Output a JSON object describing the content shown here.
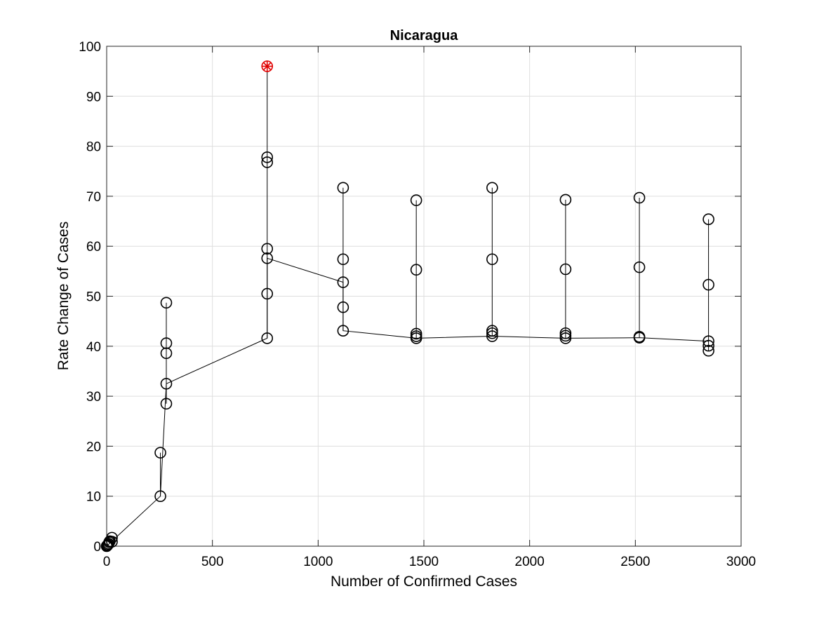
{
  "chart_data": {
    "type": "scatter",
    "title": "Nicaragua",
    "xlabel": "Number of Confirmed Cases",
    "ylabel": "Rate Change of Cases",
    "xlim": [
      0,
      3000
    ],
    "ylim": [
      0,
      100
    ],
    "xticks": [
      0,
      500,
      1000,
      1500,
      2000,
      2500,
      3000
    ],
    "yticks": [
      0,
      10,
      20,
      30,
      40,
      50,
      60,
      70,
      80,
      90,
      100
    ],
    "grid": true,
    "marker_color": "#000000",
    "highlight_color": "#e00000",
    "points": [
      [
        0,
        0
      ],
      [
        2,
        0.1
      ],
      [
        4,
        0.2
      ],
      [
        6,
        0.3
      ],
      [
        9,
        0.5
      ],
      [
        12,
        0.8
      ],
      [
        15,
        1.0
      ],
      [
        25,
        0.9
      ],
      [
        25,
        1.7
      ],
      [
        254,
        10
      ],
      [
        254,
        18.7
      ],
      [
        282,
        28.5
      ],
      [
        282,
        32.5
      ],
      [
        282,
        38.6
      ],
      [
        282,
        40.6
      ],
      [
        282,
        48.7
      ],
      [
        759,
        41.6
      ],
      [
        759,
        50.5
      ],
      [
        759,
        57.6
      ],
      [
        759,
        59.5
      ],
      [
        759,
        76.8
      ],
      [
        759,
        77.8
      ],
      [
        1118,
        43.1
      ],
      [
        1118,
        47.8
      ],
      [
        1118,
        52.8
      ],
      [
        1118,
        57.4
      ],
      [
        1118,
        71.7
      ],
      [
        1464,
        41.6
      ],
      [
        1464,
        42.0
      ],
      [
        1464,
        42.5
      ],
      [
        1464,
        55.3
      ],
      [
        1464,
        69.2
      ],
      [
        1823,
        42.0
      ],
      [
        1823,
        42.6
      ],
      [
        1823,
        43.1
      ],
      [
        1823,
        57.4
      ],
      [
        1823,
        71.7
      ],
      [
        2170,
        41.6
      ],
      [
        2170,
        42.1
      ],
      [
        2170,
        42.6
      ],
      [
        2170,
        55.4
      ],
      [
        2170,
        69.3
      ],
      [
        2519,
        41.7
      ],
      [
        2519,
        41.9
      ],
      [
        2519,
        55.8
      ],
      [
        2519,
        69.7
      ],
      [
        2846,
        39.1
      ],
      [
        2846,
        40.1
      ],
      [
        2846,
        41.0
      ],
      [
        2846,
        52.3
      ],
      [
        2846,
        65.4
      ]
    ],
    "trend_line": [
      [
        0,
        0
      ],
      [
        25,
        1.0
      ],
      [
        254,
        10
      ],
      [
        282,
        32.5
      ],
      [
        759,
        41.6
      ],
      [
        759,
        57.6
      ],
      [
        1118,
        52.8
      ],
      [
        1118,
        43.1
      ],
      [
        1464,
        41.6
      ],
      [
        1823,
        42.0
      ],
      [
        2170,
        41.6
      ],
      [
        2519,
        41.7
      ],
      [
        2846,
        41.0
      ]
    ],
    "vertical_ranges": [
      [
        254,
        10,
        18.7
      ],
      [
        282,
        28.5,
        48.7
      ],
      [
        759,
        41.6,
        96
      ],
      [
        1118,
        43.1,
        71.7
      ],
      [
        1464,
        41.6,
        69.2
      ],
      [
        1823,
        42.0,
        71.7
      ],
      [
        2170,
        41.6,
        69.3
      ],
      [
        2519,
        41.7,
        69.7
      ],
      [
        2846,
        39.1,
        65.4
      ]
    ],
    "highlight_point": [
      759,
      96
    ]
  }
}
